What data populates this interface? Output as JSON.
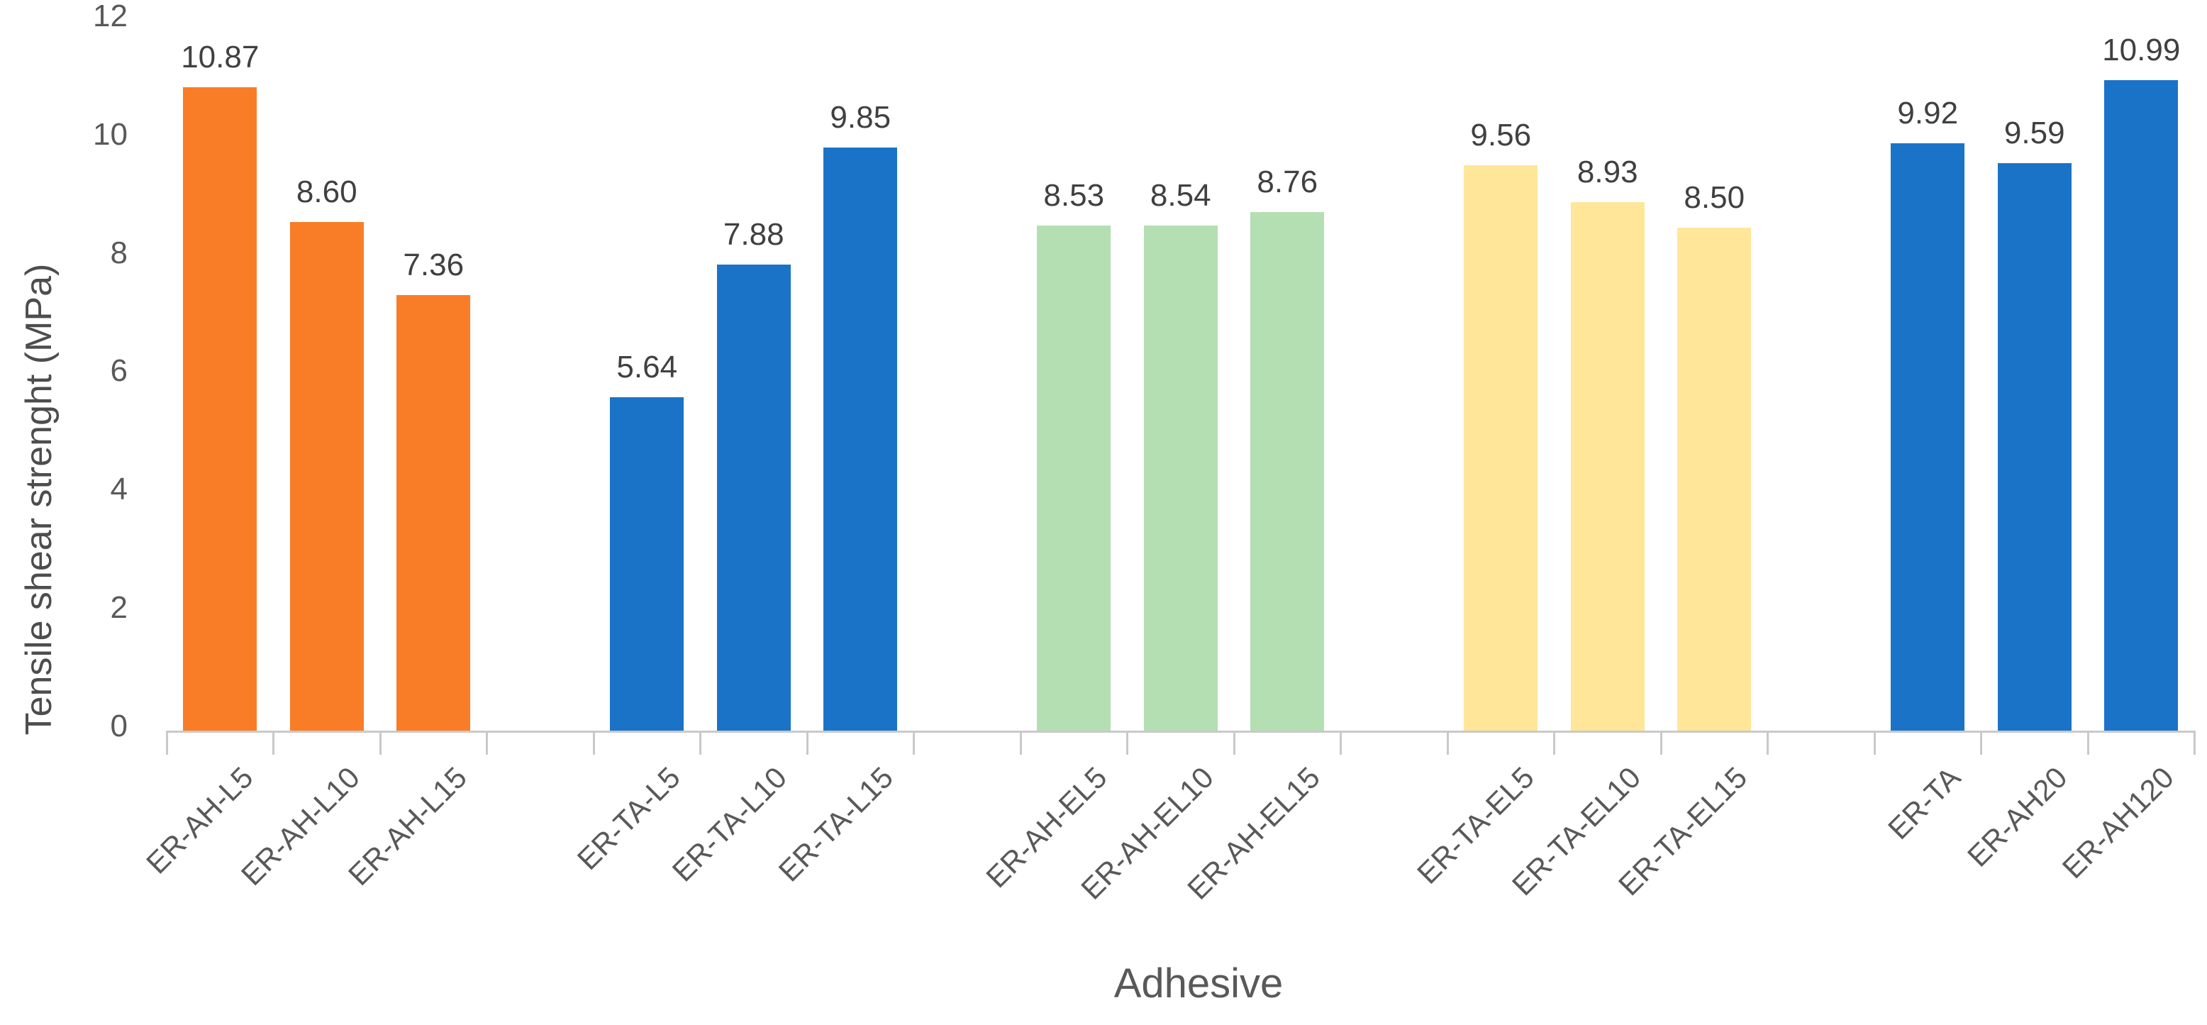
{
  "chart_data": {
    "type": "bar",
    "title": "",
    "xlabel": "Adhesive",
    "ylabel": "Tensile shear strenght (MPa)",
    "ylim": [
      0,
      12
    ],
    "yticks": [
      0,
      2,
      4,
      6,
      8,
      10,
      12
    ],
    "grid": false,
    "legend": false,
    "bar_group_size": 3,
    "categories": [
      "ER-AH-L5",
      "ER-AH-L10",
      "ER-AH-L15",
      "ER-TA-L5",
      "ER-TA-L10",
      "ER-TA-L15",
      "ER-AH-EL5",
      "ER-AH-EL10",
      "ER-AH-EL15",
      "ER-TA-EL5",
      "ER-TA-EL10",
      "ER-TA-EL15",
      "ER-TA",
      "ER-AH20",
      "ER-AH120"
    ],
    "values": [
      10.87,
      8.6,
      7.36,
      5.64,
      7.88,
      9.85,
      8.53,
      8.54,
      8.76,
      9.56,
      8.93,
      8.5,
      9.92,
      9.59,
      10.99
    ],
    "data_labels": [
      "10.87",
      "8.60",
      "7.36",
      "5.64",
      "7.88",
      "9.85",
      "8.53",
      "8.54",
      "8.76",
      "9.56",
      "8.93",
      "8.50",
      "9.92",
      "9.59",
      "10.99"
    ],
    "groups": [
      {
        "color": "#f97d27",
        "bars": [
          {
            "category": "ER-AH-L5",
            "value": 10.87,
            "label": "10.87"
          },
          {
            "category": "ER-AH-L10",
            "value": 8.6,
            "label": "8.60"
          },
          {
            "category": "ER-AH-L15",
            "value": 7.36,
            "label": "7.36"
          }
        ]
      },
      {
        "color": "#1b73c8",
        "bars": [
          {
            "category": "ER-TA-L5",
            "value": 5.64,
            "label": "5.64"
          },
          {
            "category": "ER-TA-L10",
            "value": 7.88,
            "label": "7.88"
          },
          {
            "category": "ER-TA-L15",
            "value": 9.85,
            "label": "9.85"
          }
        ]
      },
      {
        "color": "#b4dfb2",
        "bars": [
          {
            "category": "ER-AH-EL5",
            "value": 8.53,
            "label": "8.53"
          },
          {
            "category": "ER-AH-EL10",
            "value": 8.54,
            "label": "8.54"
          },
          {
            "category": "ER-AH-EL15",
            "value": 8.76,
            "label": "8.76"
          }
        ]
      },
      {
        "color": "#ffe699",
        "bars": [
          {
            "category": "ER-TA-EL5",
            "value": 9.56,
            "label": "9.56"
          },
          {
            "category": "ER-TA-EL10",
            "value": 8.93,
            "label": "8.93"
          },
          {
            "category": "ER-TA-EL15",
            "value": 8.5,
            "label": "8.50"
          }
        ]
      },
      {
        "color": "#1b73c8",
        "bars": [
          {
            "category": "ER-TA",
            "value": 9.92,
            "label": "9.92"
          },
          {
            "category": "ER-AH20",
            "value": 9.59,
            "label": "9.59"
          },
          {
            "category": "ER-AH120",
            "value": 10.99,
            "label": "10.99"
          }
        ]
      }
    ],
    "colors": {
      "axis_line": "#c9c9c9",
      "tick_text": "#595959",
      "data_label_text": "#404040",
      "axis_title_text": "#595959"
    }
  }
}
